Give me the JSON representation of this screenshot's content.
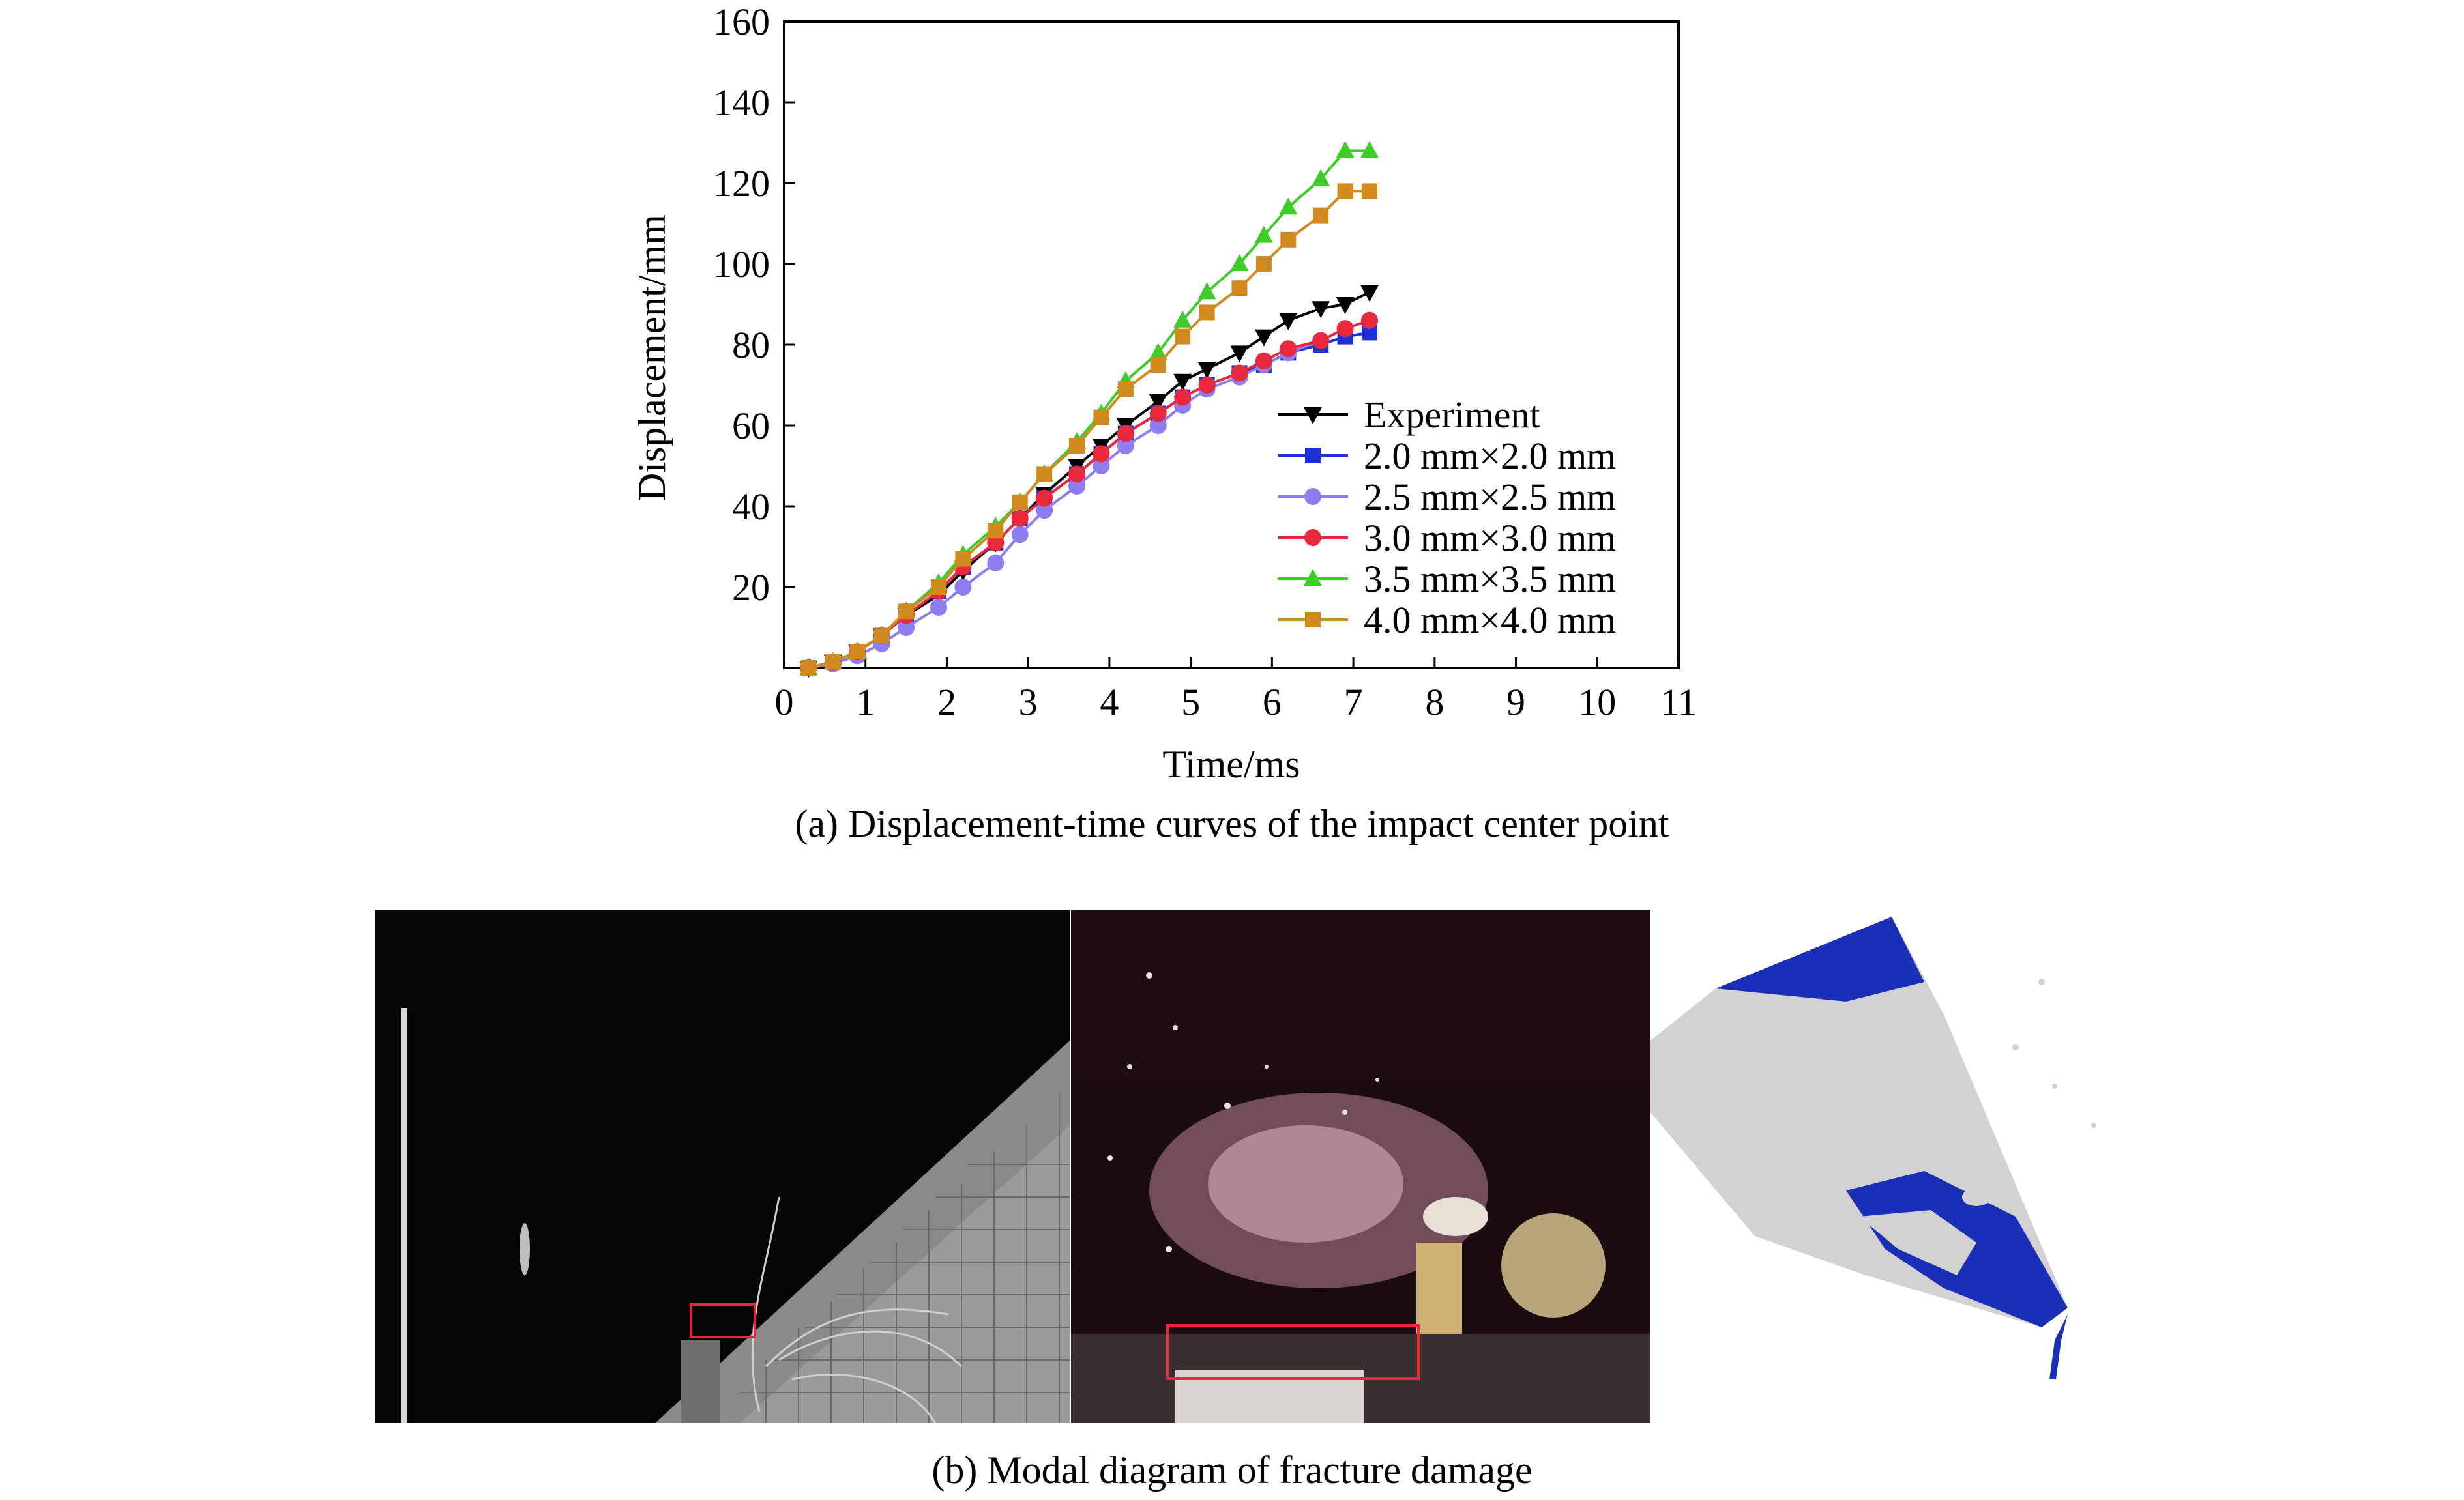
{
  "chart_data": {
    "type": "line",
    "xlabel": "Time/ms",
    "ylabel": "Displacement/mm",
    "xlim": [
      0,
      11
    ],
    "ylim": [
      0,
      160
    ],
    "xticks": [
      0,
      1,
      2,
      3,
      4,
      5,
      6,
      7,
      8,
      9,
      10,
      11
    ],
    "yticks": [
      20,
      40,
      60,
      80,
      100,
      120,
      140,
      160
    ],
    "legend_position": "lower-right",
    "grid": false,
    "series": [
      {
        "name": "Experiment",
        "color": "#000000",
        "marker": "triangle-down",
        "x": [
          0.3,
          0.6,
          0.9,
          1.2,
          1.5,
          1.9,
          2.2,
          2.6,
          2.9,
          3.2,
          3.6,
          3.9,
          4.2,
          4.6,
          4.9,
          5.2,
          5.6,
          5.9,
          6.2,
          6.6,
          6.9,
          7.2
        ],
        "y": [
          0,
          1.5,
          4,
          8,
          13,
          18,
          24,
          31,
          37,
          43,
          50,
          55,
          60,
          66,
          71,
          74,
          78,
          82,
          86,
          89,
          90,
          93
        ]
      },
      {
        "name": "2.0 mm×2.0 mm",
        "color": "#1f2fd6",
        "marker": "square",
        "x": [
          0.3,
          0.6,
          0.9,
          1.2,
          1.5,
          1.9,
          2.2,
          2.6,
          2.9,
          3.2,
          3.6,
          3.9,
          4.2,
          4.6,
          4.9,
          5.2,
          5.6,
          5.9,
          6.2,
          6.6,
          6.9,
          7.2
        ],
        "y": [
          0,
          1.5,
          4,
          8,
          13,
          19,
          25,
          31,
          37,
          42,
          48,
          53,
          58,
          63,
          67,
          70,
          73,
          75,
          78,
          80,
          82,
          83
        ]
      },
      {
        "name": "2.5 mm×2.5 mm",
        "color": "#8f7df0",
        "marker": "circle",
        "x": [
          0.3,
          0.6,
          0.9,
          1.2,
          1.5,
          1.9,
          2.2,
          2.6,
          2.9,
          3.2,
          3.6,
          3.9,
          4.2,
          4.6,
          4.9,
          5.2,
          5.6,
          5.9,
          6.2,
          6.6,
          6.9,
          7.2
        ],
        "y": [
          0,
          1,
          3,
          6,
          10,
          15,
          20,
          26,
          33,
          39,
          45,
          50,
          55,
          60,
          65,
          69,
          72,
          75,
          78,
          81,
          84,
          86
        ]
      },
      {
        "name": "3.0 mm×3.0 mm",
        "color": "#e8283c",
        "marker": "circle",
        "x": [
          0.3,
          0.6,
          0.9,
          1.2,
          1.5,
          1.9,
          2.2,
          2.6,
          2.9,
          3.2,
          3.6,
          3.9,
          4.2,
          4.6,
          4.9,
          5.2,
          5.6,
          5.9,
          6.2,
          6.6,
          6.9,
          7.2
        ],
        "y": [
          0,
          1.5,
          4,
          8,
          13,
          19,
          25,
          31,
          37,
          42,
          48,
          53,
          58,
          63,
          67,
          70,
          73,
          76,
          79,
          81,
          84,
          86
        ]
      },
      {
        "name": "3.5 mm×3.5 mm",
        "color": "#3fcc2b",
        "marker": "triangle-up",
        "x": [
          0.3,
          0.6,
          0.9,
          1.2,
          1.5,
          1.9,
          2.2,
          2.6,
          2.9,
          3.2,
          3.6,
          3.9,
          4.2,
          4.6,
          4.9,
          5.2,
          5.6,
          5.9,
          6.2,
          6.6,
          6.9,
          7.2
        ],
        "y": [
          0,
          1.5,
          4,
          8,
          14,
          21,
          28,
          35,
          41,
          48,
          56,
          63,
          71,
          78,
          86,
          93,
          100,
          107,
          114,
          121,
          128,
          128
        ]
      },
      {
        "name": "4.0 mm×4.0 mm",
        "color": "#d08a1e",
        "marker": "square",
        "x": [
          0.3,
          0.6,
          0.9,
          1.2,
          1.5,
          1.9,
          2.2,
          2.6,
          2.9,
          3.2,
          3.6,
          3.9,
          4.2,
          4.6,
          4.9,
          5.2,
          5.6,
          5.9,
          6.2,
          6.6,
          6.9,
          7.2
        ],
        "y": [
          0,
          1.5,
          4,
          8,
          14,
          20,
          27,
          34,
          41,
          48,
          55,
          62,
          69,
          75,
          82,
          88,
          94,
          100,
          106,
          112,
          118,
          118
        ]
      }
    ]
  },
  "captions": {
    "a": "(a) Displacement-time curves of the impact center point",
    "b": "(b) Modal diagram of fracture damage"
  },
  "photos": {
    "left": "high-speed-camera-frame-grid-background",
    "middle": "high-speed-camera-frame-flash",
    "right": "simulation-fracture-contour",
    "highlight_color": "#e8283c",
    "simulation_colors": [
      "#1a2fb8",
      "#cfcfcf"
    ]
  }
}
